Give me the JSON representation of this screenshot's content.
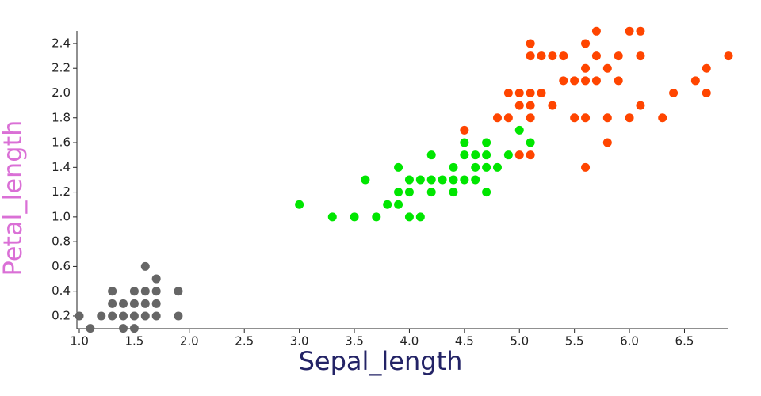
{
  "chart_data": {
    "type": "scatter",
    "x_label": "Sepal_length",
    "y_label": "Petal_length",
    "x_label_color": "#232366",
    "y_label_color": "#da70d6",
    "xlim": [
      1.0,
      6.9
    ],
    "ylim": [
      0.1,
      2.5
    ],
    "xticks": [
      {
        "value": 1.0,
        "label": "1.0"
      },
      1.5,
      {
        "value": 2.0,
        "label": "2.0"
      },
      2.5,
      {
        "value": 3.0,
        "label": "3.0"
      },
      3.5,
      {
        "value": 4.0,
        "label": "4.0"
      },
      4.5,
      {
        "value": 5.0,
        "label": "5.0"
      },
      5.5,
      {
        "value": 6.0,
        "label": "6.0"
      },
      6.5
    ],
    "yticks": [
      0.2,
      0.4,
      0.6,
      0.8,
      {
        "value": 1.0,
        "label": "1.0"
      },
      1.2,
      1.4,
      1.6,
      1.8,
      {
        "value": 2.0,
        "label": "2.0"
      },
      2.2,
      2.4
    ],
    "series": [
      {
        "color": "#666666",
        "x": [
          1.0,
          1.1,
          1.2,
          1.3,
          1.3,
          1.3,
          1.4,
          1.4,
          1.4,
          1.5,
          1.5,
          1.5,
          1.5,
          1.6,
          1.6,
          1.6,
          1.6,
          1.7,
          1.7,
          1.7,
          1.7,
          1.9,
          1.9
        ],
        "values": [
          0.2,
          0.1,
          0.2,
          0.2,
          0.3,
          0.4,
          0.1,
          0.2,
          0.3,
          0.1,
          0.2,
          0.3,
          0.4,
          0.2,
          0.3,
          0.4,
          0.6,
          0.2,
          0.3,
          0.4,
          0.5,
          0.2,
          0.4
        ]
      },
      {
        "color": "#00e600",
        "x": [
          3.0,
          3.3,
          3.5,
          3.6,
          3.7,
          3.8,
          3.9,
          3.9,
          3.9,
          4.0,
          4.0,
          4.0,
          4.1,
          4.1,
          4.2,
          4.2,
          4.2,
          4.3,
          4.4,
          4.4,
          4.4,
          4.5,
          4.5,
          4.5,
          4.6,
          4.6,
          4.6,
          4.7,
          4.7,
          4.7,
          4.7,
          4.8,
          4.9,
          5.0,
          5.1
        ],
        "values": [
          1.1,
          1.0,
          1.0,
          1.3,
          1.0,
          1.1,
          1.1,
          1.2,
          1.4,
          1.0,
          1.2,
          1.3,
          1.0,
          1.3,
          1.2,
          1.3,
          1.5,
          1.3,
          1.2,
          1.3,
          1.4,
          1.3,
          1.5,
          1.6,
          1.3,
          1.4,
          1.5,
          1.2,
          1.4,
          1.5,
          1.6,
          1.4,
          1.5,
          1.7,
          1.6
        ]
      },
      {
        "color": "#ff4500",
        "x": [
          4.5,
          4.8,
          4.9,
          4.9,
          5.0,
          5.0,
          5.0,
          5.1,
          5.1,
          5.1,
          5.1,
          5.1,
          5.1,
          5.2,
          5.2,
          5.3,
          5.3,
          5.4,
          5.4,
          5.5,
          5.5,
          5.6,
          5.6,
          5.6,
          5.6,
          5.6,
          5.7,
          5.7,
          5.7,
          5.8,
          5.8,
          5.8,
          5.9,
          5.9,
          6.0,
          6.0,
          6.1,
          6.1,
          6.1,
          6.3,
          6.4,
          6.6,
          6.7,
          6.7,
          6.9
        ],
        "values": [
          1.7,
          1.8,
          1.8,
          2.0,
          1.5,
          1.9,
          2.0,
          1.5,
          1.8,
          1.9,
          2.0,
          2.3,
          2.4,
          2.0,
          2.3,
          1.9,
          2.3,
          2.1,
          2.3,
          1.8,
          2.1,
          1.4,
          1.8,
          2.1,
          2.2,
          2.4,
          2.1,
          2.3,
          2.5,
          1.6,
          1.8,
          2.2,
          2.1,
          2.3,
          1.8,
          2.5,
          1.9,
          2.3,
          2.5,
          1.8,
          2.0,
          2.1,
          2.0,
          2.2,
          2.3
        ]
      }
    ]
  }
}
